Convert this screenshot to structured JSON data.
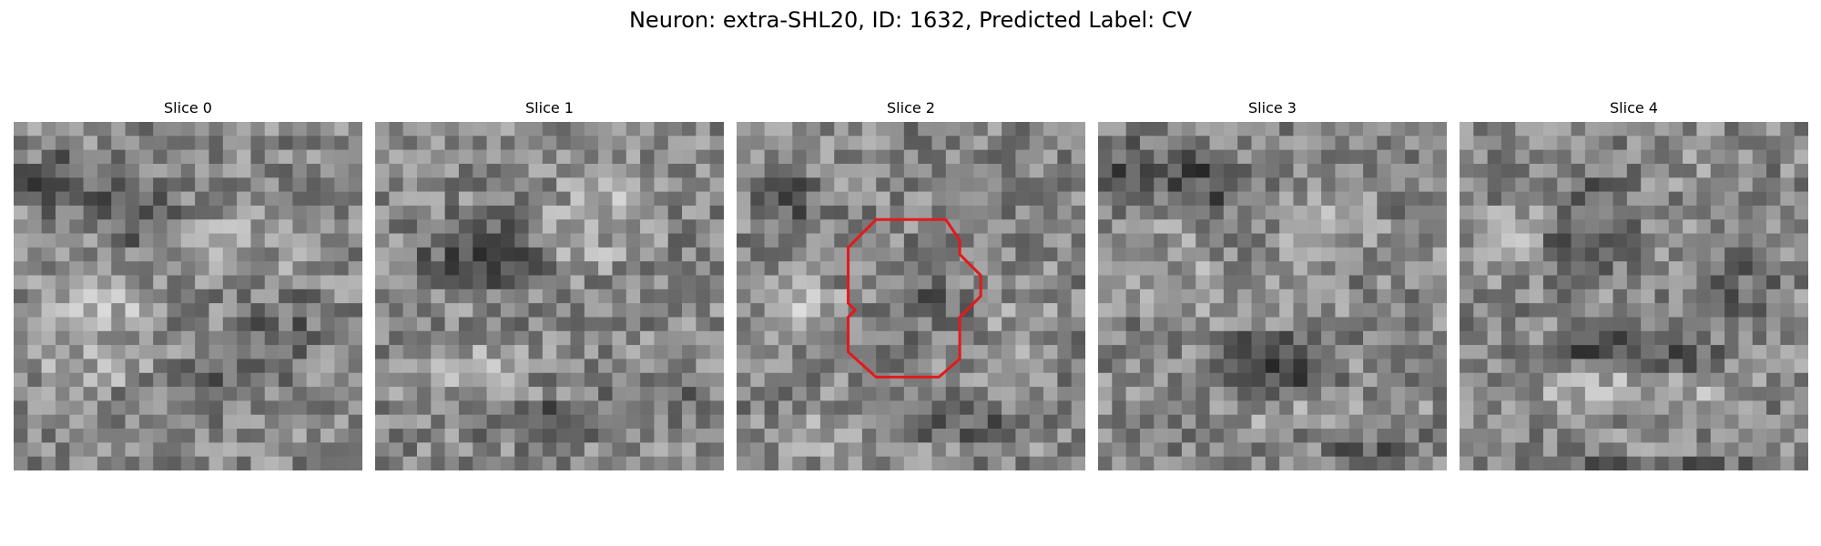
{
  "figure": {
    "title": "Neuron: extra-SHL20, ID: 1632, Predicted Label: CV"
  },
  "slices": [
    {
      "label": "Slice 0"
    },
    {
      "label": "Slice 1"
    },
    {
      "label": "Slice 2",
      "has_outline": true
    },
    {
      "label": "Slice 3"
    },
    {
      "label": "Slice 4"
    }
  ],
  "colors": {
    "outline": "#e31a1c",
    "colormap": "gray"
  }
}
